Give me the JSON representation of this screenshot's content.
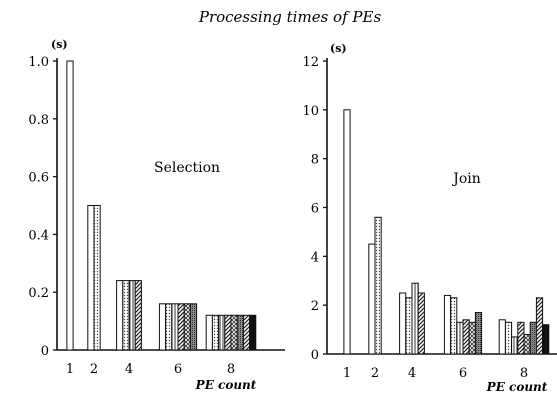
{
  "title": "Processing times of PEs",
  "chart_data": [
    {
      "type": "bar",
      "label": "Selection",
      "unit": "(s)",
      "xlabel": "PE count",
      "ylim": [
        0,
        1.0
      ],
      "yticks": [
        "0",
        "0.2",
        "0.4",
        "0.6",
        "0.8",
        "1.0"
      ],
      "categories": [
        "1",
        "2",
        "4",
        "6",
        "8"
      ],
      "groups": [
        [
          1.0
        ],
        [
          0.5,
          0.5
        ],
        [
          0.24,
          0.24,
          0.24,
          0.24
        ],
        [
          0.16,
          0.16,
          0.16,
          0.16,
          0.16,
          0.16
        ],
        [
          0.12,
          0.12,
          0.12,
          0.12,
          0.12,
          0.12,
          0.12,
          0.12
        ]
      ]
    },
    {
      "type": "bar",
      "label": "Join",
      "unit": "(s)",
      "xlabel": "PE count",
      "ylim": [
        0,
        12
      ],
      "yticks": [
        "0",
        "2",
        "4",
        "6",
        "8",
        "10",
        "12"
      ],
      "categories": [
        "1",
        "2",
        "4",
        "6",
        "8"
      ],
      "groups": [
        [
          10.0
        ],
        [
          4.5,
          5.6
        ],
        [
          2.5,
          2.3,
          2.9,
          2.5
        ],
        [
          2.4,
          2.3,
          1.3,
          1.4,
          1.3,
          1.7
        ],
        [
          1.4,
          1.3,
          0.7,
          1.3,
          0.8,
          1.3,
          2.3,
          1.2
        ]
      ]
    }
  ]
}
